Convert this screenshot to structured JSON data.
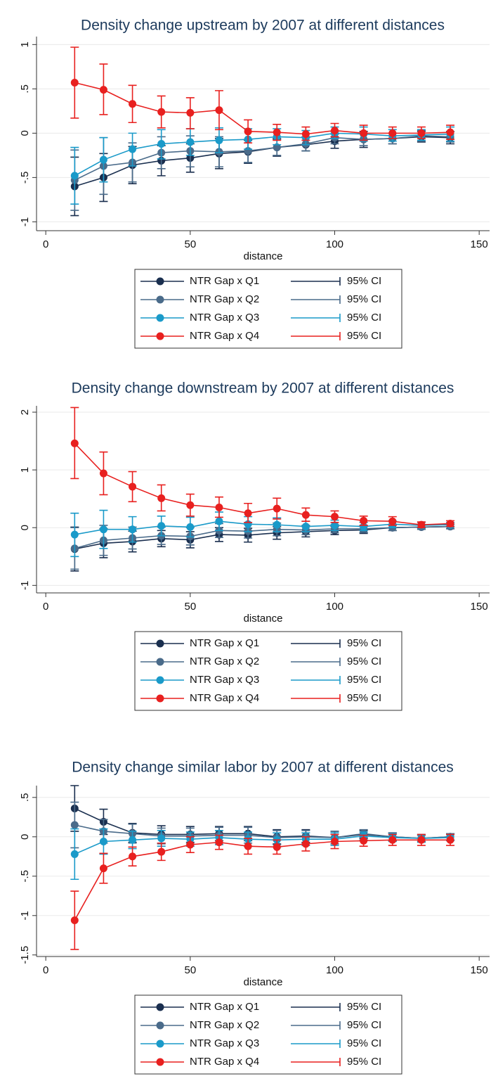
{
  "chart_data": [
    {
      "type": "line",
      "title": "Density change upstream by 2007 at different distances",
      "x_label": "distance",
      "x": [
        10,
        20,
        30,
        40,
        50,
        60,
        70,
        80,
        90,
        100,
        110,
        120,
        130,
        140
      ],
      "xlim": [
        -3.2,
        153.6
      ],
      "xticks": [
        0,
        50,
        100,
        150
      ],
      "ylim": [
        -1.1,
        1.09
      ],
      "yticks": [
        {
          "value": -1,
          "label": "-1"
        },
        {
          "value": -0.5,
          "label": "-.5"
        },
        0,
        {
          "value": 0.5,
          "label": ".5"
        },
        1
      ],
      "grid": true,
      "legend": "bottom",
      "series": [
        {
          "name": "NTR Gap x Q1",
          "ci_name": "95% CI",
          "color": "#1a2f4f",
          "values": [
            -0.6,
            -0.5,
            -0.36,
            -0.31,
            -0.28,
            -0.23,
            -0.21,
            -0.16,
            -0.13,
            -0.09,
            -0.07,
            -0.06,
            -0.04,
            -0.05
          ],
          "ci_low": [
            -0.93,
            -0.77,
            -0.57,
            -0.48,
            -0.44,
            -0.4,
            -0.34,
            -0.26,
            -0.2,
            -0.17,
            -0.16,
            -0.12,
            -0.1,
            -0.12
          ],
          "ci_high": [
            -0.27,
            -0.23,
            -0.15,
            -0.14,
            -0.12,
            -0.06,
            -0.08,
            -0.06,
            -0.05,
            -0.01,
            0.02,
            0,
            0.02,
            0.02
          ]
        },
        {
          "name": "NTR Gap x Q2",
          "ci_name": "95% CI",
          "color": "#4a6b8a",
          "values": [
            -0.53,
            -0.37,
            -0.33,
            -0.22,
            -0.2,
            -0.21,
            -0.2,
            -0.16,
            -0.12,
            -0.05,
            -0.07,
            -0.06,
            -0.03,
            -0.04
          ],
          "ci_low": [
            -0.87,
            -0.69,
            -0.55,
            -0.4,
            -0.38,
            -0.38,
            -0.33,
            -0.25,
            -0.2,
            -0.12,
            -0.14,
            -0.12,
            -0.09,
            -0.1
          ],
          "ci_high": [
            -0.19,
            -0.05,
            -0.11,
            -0.04,
            -0.03,
            -0.04,
            -0.07,
            -0.07,
            -0.04,
            0.02,
            0,
            0,
            0.03,
            0.02
          ]
        },
        {
          "name": "NTR Gap x Q3",
          "ci_name": "95% CI",
          "color": "#1a9ac9",
          "values": [
            -0.48,
            -0.3,
            -0.18,
            -0.12,
            -0.1,
            -0.08,
            -0.07,
            -0.04,
            -0.05,
            0,
            -0.01,
            -0.03,
            -0.02,
            -0.01
          ],
          "ci_low": [
            -0.8,
            -0.55,
            -0.37,
            -0.29,
            -0.25,
            -0.22,
            -0.18,
            -0.13,
            -0.13,
            -0.06,
            -0.09,
            -0.09,
            -0.08,
            -0.09
          ],
          "ci_high": [
            -0.16,
            -0.05,
            0,
            0.04,
            0.05,
            0.06,
            0.05,
            0.05,
            0.03,
            0.07,
            0.07,
            0.04,
            0.04,
            0.07
          ]
        },
        {
          "name": "NTR Gap x Q4",
          "ci_name": "95% CI",
          "color": "#e8201f",
          "values": [
            0.57,
            0.49,
            0.33,
            0.24,
            0.23,
            0.26,
            0.02,
            0.01,
            -0.01,
            0.03,
            0,
            0,
            0,
            0.01
          ],
          "ci_low": [
            0.17,
            0.21,
            0.12,
            0.06,
            0.05,
            0.04,
            -0.11,
            -0.08,
            -0.08,
            -0.04,
            -0.08,
            -0.06,
            -0.06,
            -0.07
          ],
          "ci_high": [
            0.97,
            0.78,
            0.54,
            0.42,
            0.4,
            0.48,
            0.15,
            0.1,
            0.07,
            0.11,
            0.09,
            0.07,
            0.07,
            0.09
          ]
        }
      ]
    },
    {
      "type": "line",
      "title": "Density change downstream by 2007 at different distances",
      "x_label": "distance",
      "x": [
        10,
        20,
        30,
        40,
        50,
        60,
        70,
        80,
        90,
        100,
        110,
        120,
        130,
        140
      ],
      "xlim": [
        -3.2,
        153.6
      ],
      "xticks": [
        0,
        50,
        100,
        150
      ],
      "ylim": [
        -1.13,
        2.11
      ],
      "yticks": [
        -1,
        0,
        1,
        2
      ],
      "grid": true,
      "legend": "bottom",
      "series": [
        {
          "name": "NTR Gap x Q1",
          "ci_name": "95% CI",
          "color": "#1a2f4f",
          "values": [
            -0.37,
            -0.27,
            -0.24,
            -0.19,
            -0.21,
            -0.12,
            -0.13,
            -0.09,
            -0.07,
            -0.05,
            -0.04,
            0,
            0.01,
            0.02
          ],
          "ci_low": [
            -0.75,
            -0.52,
            -0.42,
            -0.33,
            -0.35,
            -0.24,
            -0.25,
            -0.2,
            -0.16,
            -0.12,
            -0.1,
            -0.05,
            -0.03,
            -0.02
          ],
          "ci_high": [
            0.01,
            -0.02,
            -0.06,
            -0.05,
            -0.07,
            0,
            -0.01,
            0.02,
            0.02,
            0.02,
            0.02,
            0.05,
            0.05,
            0.06
          ]
        },
        {
          "name": "NTR Gap x Q2",
          "ci_name": "95% CI",
          "color": "#4a6b8a",
          "values": [
            -0.36,
            -0.22,
            -0.18,
            -0.14,
            -0.15,
            -0.05,
            -0.06,
            -0.03,
            -0.04,
            -0.02,
            -0.02,
            0,
            0.01,
            0.02
          ],
          "ci_low": [
            -0.72,
            -0.48,
            -0.37,
            -0.29,
            -0.3,
            -0.17,
            -0.18,
            -0.14,
            -0.12,
            -0.09,
            -0.08,
            -0.05,
            -0.03,
            -0.02
          ],
          "ci_high": [
            0,
            0.04,
            0.01,
            0.01,
            0,
            0.07,
            0.06,
            0.08,
            0.04,
            0.05,
            0.04,
            0.05,
            0.05,
            0.06
          ]
        },
        {
          "name": "NTR Gap x Q3",
          "ci_name": "95% CI",
          "color": "#1a9ac9",
          "values": [
            -0.12,
            -0.03,
            -0.03,
            0.03,
            0.01,
            0.11,
            0.06,
            0.05,
            0.02,
            0.04,
            0.02,
            0.06,
            0.04,
            0.05
          ],
          "ci_low": [
            -0.5,
            -0.36,
            -0.25,
            -0.14,
            -0.16,
            -0.05,
            -0.07,
            -0.07,
            -0.07,
            -0.05,
            -0.05,
            0,
            -0.01,
            0.01
          ],
          "ci_high": [
            0.25,
            0.3,
            0.19,
            0.2,
            0.18,
            0.27,
            0.19,
            0.17,
            0.11,
            0.13,
            0.09,
            0.12,
            0.09,
            0.09
          ]
        },
        {
          "name": "NTR Gap x Q4",
          "ci_name": "95% CI",
          "color": "#e8201f",
          "values": [
            1.46,
            0.94,
            0.71,
            0.51,
            0.39,
            0.35,
            0.25,
            0.33,
            0.22,
            0.19,
            0.12,
            0.11,
            0.05,
            0.07
          ],
          "ci_low": [
            0.85,
            0.57,
            0.45,
            0.29,
            0.2,
            0.18,
            0.09,
            0.15,
            0.11,
            0.09,
            0.04,
            0.04,
            0,
            0.02
          ],
          "ci_high": [
            2.08,
            1.31,
            0.97,
            0.74,
            0.58,
            0.53,
            0.42,
            0.51,
            0.34,
            0.29,
            0.2,
            0.19,
            0.1,
            0.12
          ]
        }
      ]
    },
    {
      "type": "line",
      "title": "Density change similar labor by 2007 at different distances",
      "x_label": "distance",
      "x": [
        10,
        20,
        30,
        40,
        50,
        60,
        70,
        80,
        90,
        100,
        110,
        120,
        130,
        140
      ],
      "xlim": [
        -3.2,
        153.6
      ],
      "xticks": [
        0,
        50,
        100,
        150
      ],
      "ylim": [
        -1.52,
        0.65
      ],
      "yticks": [
        {
          "value": -1.5,
          "label": "-1.5"
        },
        {
          "value": -1,
          "label": "-1"
        },
        {
          "value": -0.5,
          "label": "-.5"
        },
        0,
        {
          "value": 0.5,
          "label": ".5"
        }
      ],
      "grid": true,
      "legend": "bottom",
      "series": [
        {
          "name": "NTR Gap x Q1",
          "ci_name": "95% CI",
          "color": "#1a2f4f",
          "values": [
            0.36,
            0.19,
            0.05,
            0.03,
            0.03,
            0.04,
            0.04,
            0,
            0.01,
            -0.01,
            0.03,
            0,
            -0.02,
            0
          ],
          "ci_low": [
            0.07,
            0.03,
            -0.07,
            -0.08,
            -0.07,
            -0.05,
            -0.05,
            -0.09,
            -0.07,
            -0.09,
            -0.02,
            -0.05,
            -0.06,
            -0.04
          ],
          "ci_high": [
            0.65,
            0.35,
            0.17,
            0.14,
            0.13,
            0.13,
            0.13,
            0.09,
            0.09,
            0.07,
            0.08,
            0.05,
            0.02,
            0.04
          ]
        },
        {
          "name": "NTR Gap x Q2",
          "ci_name": "95% CI",
          "color": "#4a6b8a",
          "values": [
            0.15,
            0.07,
            0.04,
            0.01,
            0.01,
            0.02,
            0.02,
            -0.01,
            0,
            -0.01,
            0.04,
            0,
            -0.02,
            0
          ],
          "ci_low": [
            -0.14,
            -0.08,
            -0.08,
            -0.09,
            -0.09,
            -0.08,
            -0.08,
            -0.1,
            -0.08,
            -0.09,
            -0.01,
            -0.05,
            -0.06,
            -0.04
          ],
          "ci_high": [
            0.44,
            0.22,
            0.16,
            0.11,
            0.11,
            0.12,
            0.12,
            0.08,
            0.08,
            0.07,
            0.09,
            0.05,
            0.02,
            0.04
          ]
        },
        {
          "name": "NTR Gap x Q3",
          "ci_name": "95% CI",
          "color": "#1a9ac9",
          "values": [
            -0.22,
            -0.06,
            -0.04,
            -0.02,
            -0.03,
            -0.01,
            -0.03,
            -0.04,
            -0.03,
            -0.03,
            0.01,
            -0.01,
            -0.02,
            -0.01
          ],
          "ci_low": [
            -0.54,
            -0.22,
            -0.15,
            -0.12,
            -0.12,
            -0.1,
            -0.12,
            -0.13,
            -0.11,
            -0.11,
            -0.04,
            -0.06,
            -0.07,
            -0.05
          ],
          "ci_high": [
            0.1,
            0.1,
            0.07,
            0.08,
            0.06,
            0.08,
            0.06,
            0.05,
            0.05,
            0.05,
            0.06,
            0.04,
            0.03,
            0.03
          ]
        },
        {
          "name": "NTR Gap x Q4",
          "ci_name": "95% CI",
          "color": "#e8201f",
          "values": [
            -1.06,
            -0.4,
            -0.25,
            -0.19,
            -0.1,
            -0.07,
            -0.12,
            -0.13,
            -0.09,
            -0.06,
            -0.05,
            -0.04,
            -0.04,
            -0.04
          ],
          "ci_low": [
            -1.43,
            -0.59,
            -0.37,
            -0.3,
            -0.2,
            -0.16,
            -0.22,
            -0.22,
            -0.18,
            -0.15,
            -0.12,
            -0.11,
            -0.11,
            -0.11
          ],
          "ci_high": [
            -0.69,
            -0.21,
            -0.13,
            -0.08,
            0,
            0.02,
            -0.02,
            -0.04,
            0,
            0.03,
            0.02,
            0.03,
            0.03,
            0.03
          ]
        }
      ]
    }
  ]
}
